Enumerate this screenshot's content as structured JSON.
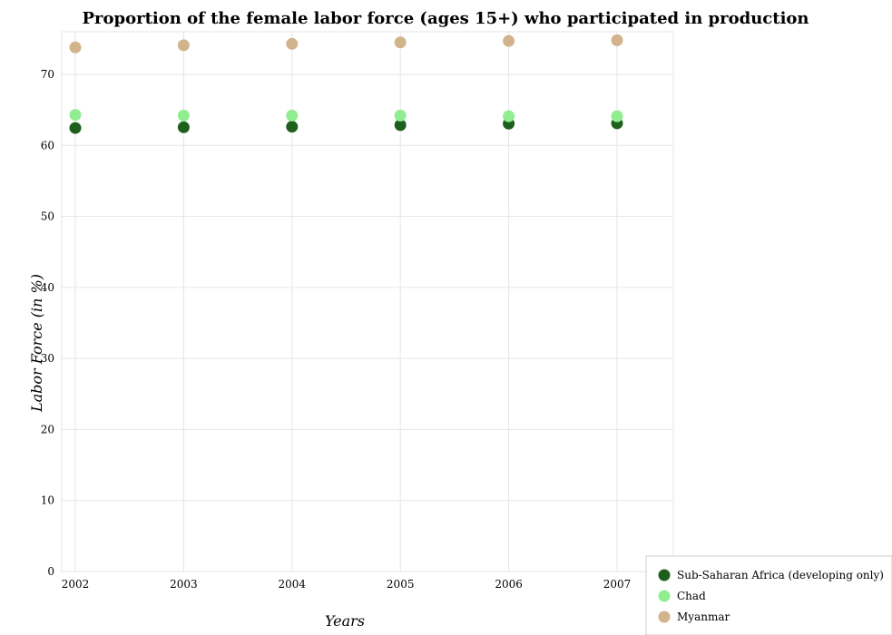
{
  "chart_data": {
    "type": "scatter",
    "title": "Proportion of the female labor force (ages 15+) who participated in production",
    "xlabel": "Years",
    "ylabel": "Labor Force (in %)",
    "categories": [
      "2002",
      "2003",
      "2004",
      "2005",
      "2006",
      "2007"
    ],
    "ylim": [
      0,
      76
    ],
    "yticks": [
      0,
      10,
      20,
      30,
      40,
      50,
      60,
      70
    ],
    "grid": true,
    "legend_position": "bottom-right",
    "series": [
      {
        "name": "Sub-Saharan Africa (developing only)",
        "color": "#1e5f1e",
        "values": [
          62.45,
          62.55,
          62.63,
          62.86,
          63.07,
          63.11
        ]
      },
      {
        "name": "Chad",
        "color": "#90ee90",
        "values": [
          64.3,
          64.2,
          64.2,
          64.2,
          64.1,
          64.1
        ]
      },
      {
        "name": "Myanmar",
        "color": "#d2b48c",
        "values": [
          73.8,
          74.1,
          74.3,
          74.5,
          74.7,
          74.8
        ]
      }
    ]
  }
}
